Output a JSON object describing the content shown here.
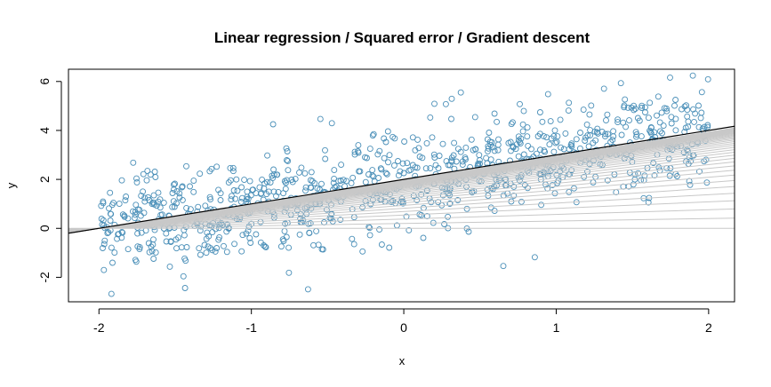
{
  "chart_data": {
    "type": "scatter",
    "title": "Linear regression / Squared error / Gradient descent",
    "xlabel": "x",
    "ylabel": "y",
    "xlim": [
      -2.2,
      2.17
    ],
    "ylim": [
      -3.0,
      6.5
    ],
    "x_ticks": [
      "-2",
      "-1",
      "0",
      "1",
      "2"
    ],
    "x_tick_values": [
      -2,
      -1,
      0,
      1,
      2
    ],
    "y_ticks": [
      "-2",
      "0",
      "2",
      "4",
      "6"
    ],
    "y_tick_values": [
      -2,
      0,
      2,
      4,
      6
    ],
    "grid": false,
    "point_style": "open circle",
    "point_color": "#4a8fb8",
    "scatter": {
      "n_points": 1000,
      "x_range": [
        -2,
        2
      ],
      "trend": {
        "intercept": 2.0,
        "slope": 1.0
      },
      "noise_sd": 1.0
    },
    "descent_lines": {
      "color": "#c8c8c8",
      "count": 40,
      "start": {
        "intercept": 0.0,
        "slope": 0.0
      }
    },
    "final_line": {
      "color": "#000000",
      "intercept": 2.0,
      "slope": 1.0
    },
    "colors": {
      "points": "#4a8fb8",
      "iterations": "#c8c8c8",
      "fit": "#000000",
      "frame": "#000000"
    }
  }
}
